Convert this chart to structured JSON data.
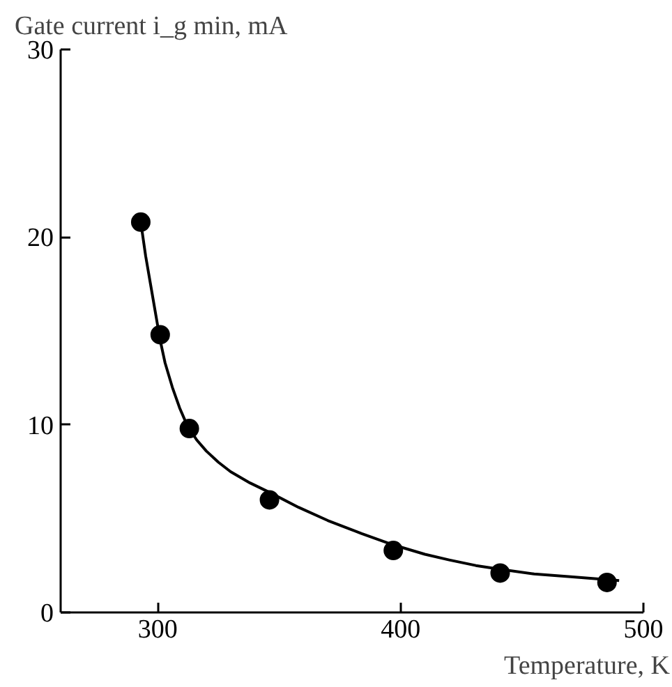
{
  "chart_data": {
    "type": "scatter",
    "ylabel": "Gate current i_g min, mA",
    "xlabel": "Temperature, K",
    "xlim": [
      260,
      500
    ],
    "xticks": [
      300,
      400,
      500
    ],
    "ylim": [
      0,
      30
    ],
    "yticks": [
      0,
      10,
      20,
      30
    ],
    "grid": false,
    "series": [
      {
        "marker": "circle",
        "color": "#000000",
        "x": [
          293,
          301,
          313,
          346,
          397,
          441,
          485
        ],
        "values": [
          20.8,
          14.8,
          9.8,
          6.0,
          3.3,
          2.1,
          1.6
        ]
      },
      {
        "type": "line",
        "color": "#000000",
        "x": [
          293,
          295,
          297,
          299,
          301,
          303,
          306,
          309,
          312,
          316,
          320,
          325,
          330,
          338,
          346,
          358,
          370,
          384,
          397,
          410,
          420,
          431,
          441,
          455,
          470,
          480,
          490
        ],
        "values": [
          20.8,
          19.0,
          17.5,
          16.0,
          14.5,
          13.3,
          12.0,
          10.9,
          10.0,
          9.2,
          8.6,
          8.0,
          7.5,
          6.9,
          6.4,
          5.6,
          4.9,
          4.2,
          3.6,
          3.1,
          2.8,
          2.5,
          2.3,
          2.05,
          1.9,
          1.8,
          1.7
        ]
      }
    ]
  }
}
